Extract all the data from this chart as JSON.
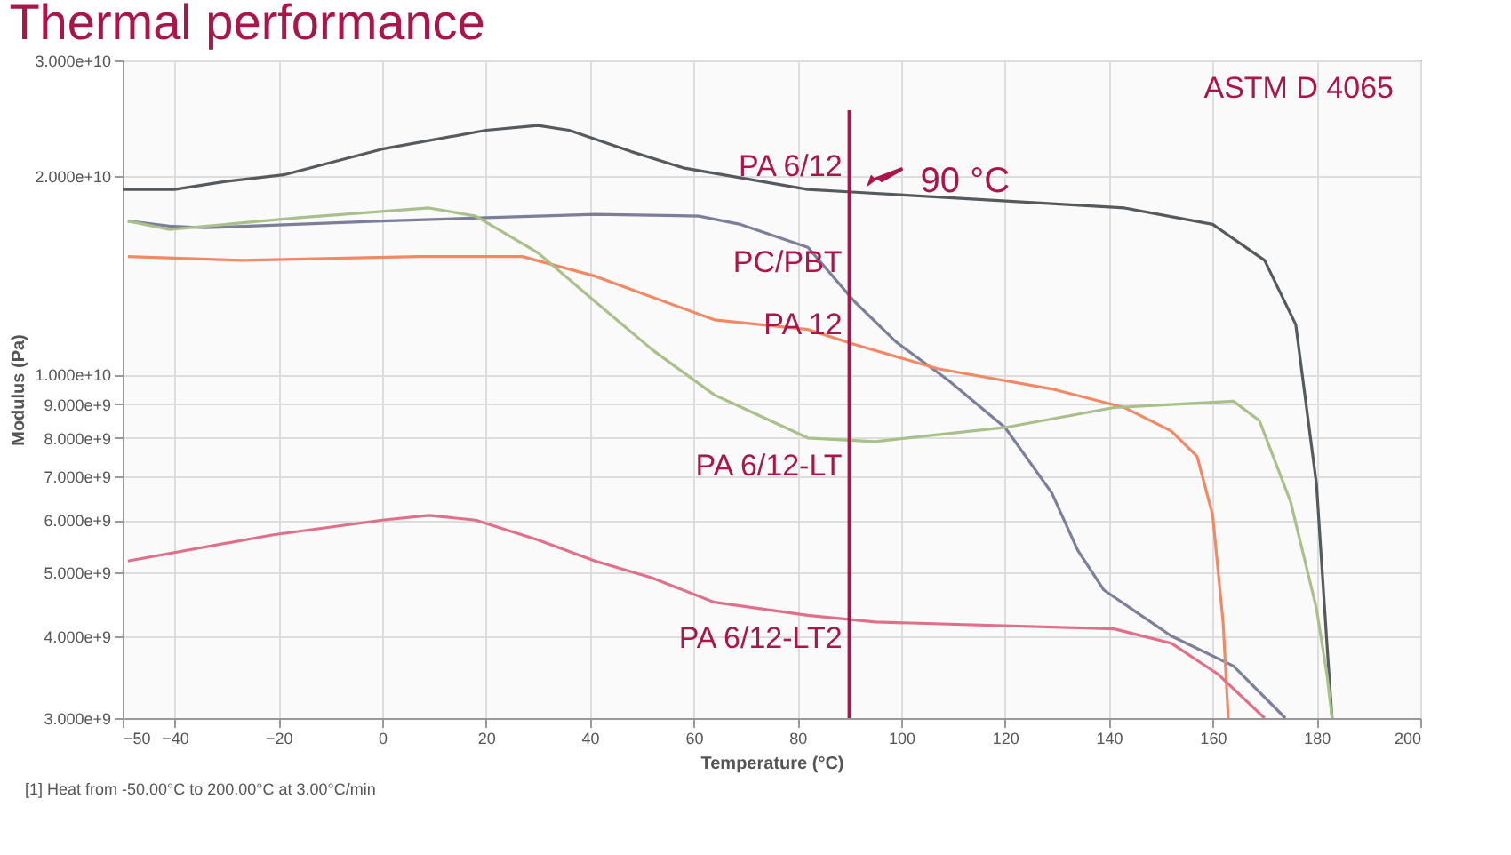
{
  "chart_data": {
    "type": "line",
    "title": "Thermal performance",
    "xlabel": "Temperature (°C)",
    "ylabel": "Modulus (Pa)",
    "annotations": [
      "ASTM D 4065",
      "[1] Heat from -50.00°C to 200.00°C at 3.00°C/min"
    ],
    "xlim": [
      -50,
      200
    ],
    "xticks": [
      -50,
      -40,
      -20,
      0,
      20,
      40,
      60,
      80,
      100,
      120,
      140,
      160,
      180,
      200
    ],
    "ylim": [
      3000000000.0,
      30000000000.0
    ],
    "log": true,
    "yticks": [
      {
        "value": 30000000000.0,
        "label": "3.000e+10"
      },
      {
        "value": 20000000000.0,
        "label": "2.000e+10"
      },
      {
        "value": 10000000000.0,
        "label": "1.000e+10"
      },
      {
        "value": 9000000000.0,
        "label": "9.000e+9"
      },
      {
        "value": 8000000000.0,
        "label": "8.000e+9"
      },
      {
        "value": 7000000000.0,
        "label": "7.000e+9"
      },
      {
        "value": 6000000000.0,
        "label": "6.000e+9"
      },
      {
        "value": 5000000000.0,
        "label": "5.000e+9"
      },
      {
        "value": 4000000000.0,
        "label": "4.000e+9"
      },
      {
        "value": 3000000000.0,
        "label": "3.000e+9"
      }
    ],
    "grid": true,
    "legend": false,
    "marker": "none",
    "line_style": "solid",
    "ref_lines": [
      {
        "axis": "x",
        "value": 90,
        "label": "90 °C",
        "color": "#a8164a"
      }
    ],
    "series": [
      {
        "name": "PA 6/12",
        "color": "#555a5e",
        "x": [
          -50,
          -40,
          -31,
          -19,
          0,
          20,
          30,
          36,
          48,
          58,
          82,
          92,
          143,
          160,
          170,
          176,
          180,
          182,
          183
        ],
        "values": [
          19100000000.0,
          19100000000.0,
          19600000000.0,
          20100000000.0,
          22000000000.0,
          23500000000.0,
          23900000000.0,
          23500000000.0,
          21800000000.0,
          20600000000.0,
          19100000000.0,
          18900000000.0,
          17900000000.0,
          16900000000.0,
          14900000000.0,
          11900000000.0,
          6800000000.0,
          3900000000.0,
          3000000000.0
        ]
      },
      {
        "name": "PC/PBT",
        "color": "#7b7f99",
        "x": [
          -49,
          -41,
          -34,
          0,
          20,
          41,
          61,
          69,
          82,
          91,
          99,
          109,
          120,
          129,
          134,
          139,
          152,
          164,
          174
        ],
        "values": [
          17100000000.0,
          16800000000.0,
          16700000000.0,
          17100000000.0,
          17300000000.0,
          17500000000.0,
          17400000000.0,
          16900000000.0,
          15600000000.0,
          12900000000.0,
          11200000000.0,
          9800000000.0,
          8300000000.0,
          6600000000.0,
          5400000000.0,
          4700000000.0,
          4000000000.0,
          3600000000.0,
          3000000000.0
        ]
      },
      {
        "name": "PA 12",
        "color": "#f08a66",
        "x": [
          -49,
          -27,
          7,
          27,
          41,
          52,
          64,
          82,
          91,
          107,
          129,
          143,
          152,
          157,
          160,
          162,
          163
        ],
        "values": [
          15100000000.0,
          14900000000.0,
          15100000000.0,
          15100000000.0,
          14100000000.0,
          13100000000.0,
          12100000000.0,
          11700000000.0,
          11100000000.0,
          10200000000.0,
          9500000000.0,
          8900000000.0,
          8200000000.0,
          7500000000.0,
          6100000000.0,
          4200000000.0,
          3000000000.0
        ]
      },
      {
        "name": "PA 6/12-LT",
        "color": "#a9c08a",
        "x": [
          -49,
          -41,
          -16,
          9,
          18,
          30,
          41,
          52,
          64,
          68,
          82,
          95,
          120,
          141,
          164,
          169,
          175,
          180,
          182,
          183
        ],
        "values": [
          17100000000.0,
          16600000000.0,
          17300000000.0,
          17900000000.0,
          17400000000.0,
          15300000000.0,
          12900000000.0,
          10900000000.0,
          9300000000.0,
          9000000000.0,
          8000000000.0,
          7900000000.0,
          8300000000.0,
          8900000000.0,
          9100000000.0,
          8500000000.0,
          6400000000.0,
          4400000000.0,
          3500000000.0,
          3000000000.0
        ]
      },
      {
        "name": "PA 6/12-LT2",
        "color": "#e0708a",
        "x": [
          -49,
          -21,
          0,
          9,
          18,
          30,
          41,
          52,
          64,
          82,
          95,
          141,
          152,
          161,
          170
        ],
        "values": [
          5200000000.0,
          5700000000.0,
          6000000000.0,
          6100000000.0,
          6000000000.0,
          5600000000.0,
          5200000000.0,
          4900000000.0,
          4500000000.0,
          4300000000.0,
          4200000000.0,
          4100000000.0,
          3900000000.0,
          3500000000.0,
          3000000000.0
        ]
      }
    ]
  }
}
